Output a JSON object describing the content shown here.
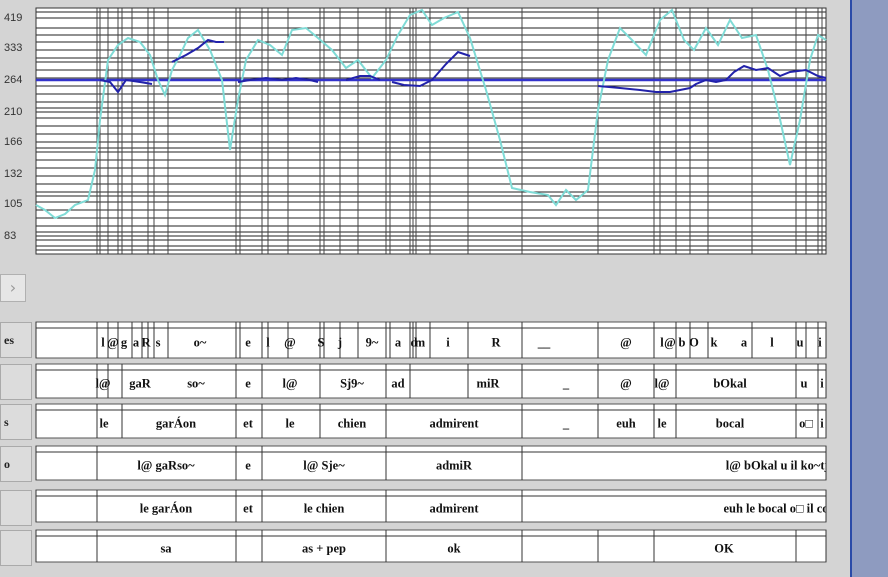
{
  "plot": {
    "y_ticks": [
      "419",
      "333",
      "264",
      "210",
      "166",
      "132",
      "105",
      "83"
    ],
    "pitch_color": "#2222aa",
    "intensity_color": "#7fdbd6"
  },
  "nav": {
    "scroll_right_glyph": "›"
  },
  "side_buttons": [
    "es",
    "",
    "s",
    "o",
    "",
    ""
  ],
  "tiers": [
    [
      "l",
      "@",
      "g",
      "a",
      "R",
      "s",
      "o~",
      "e",
      "l",
      "@",
      "S",
      "j",
      "9~",
      "a",
      "d",
      "m",
      "i",
      "R",
      "__",
      "@",
      "l",
      "@",
      "b",
      "O",
      "k",
      "a",
      "l",
      "u",
      "i"
    ],
    [
      "l@",
      "gaR",
      "so~",
      "e",
      "l@",
      "Sj9~",
      "ad",
      "miR",
      "_",
      "@",
      "l@",
      "bOkal",
      "u",
      "i"
    ],
    [
      "le",
      "garÁon",
      "et",
      "le",
      "chien",
      "admirent",
      "_",
      "euh",
      "le",
      "bocal",
      "o□",
      "i"
    ],
    [
      "l@ gaRso~",
      "e",
      "l@ Sje~",
      "admiR",
      "l@ bOkal u il ko~tje"
    ],
    [
      "le garÁon",
      "et",
      "le chien",
      "admirent",
      "euh le bocal o□ il co"
    ],
    [
      "sa",
      "as + pep",
      "ok",
      "OK"
    ]
  ],
  "colors": {
    "background": "#d4d4d4",
    "panel": "#8e9bc0",
    "panel_border": "#2a4aa8",
    "tier_bg": "#ffffff"
  }
}
